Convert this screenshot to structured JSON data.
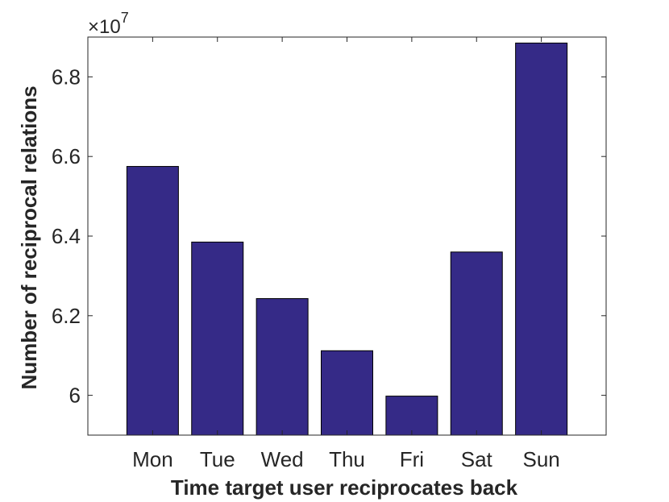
{
  "chart_data": {
    "type": "bar",
    "categories": [
      "Mon",
      "Tue",
      "Wed",
      "Thu",
      "Fri",
      "Sat",
      "Sun"
    ],
    "values": [
      65750000,
      63850000,
      62430000,
      61120000,
      59980000,
      63600000,
      68850000
    ],
    "xlabel": "Time target user reciprocates back",
    "ylabel": "Number of reciprocal relations",
    "ylim": [
      59000000,
      69000000
    ],
    "yticks": [
      60000000,
      62000000,
      64000000,
      66000000,
      68000000
    ],
    "ytick_labels": [
      "6",
      "6.2",
      "6.4",
      "6.6",
      "6.8"
    ],
    "exponent_label": {
      "times": "×10",
      "power": "7"
    },
    "bar_color": "#352a87",
    "grid": false,
    "legend": "none"
  }
}
